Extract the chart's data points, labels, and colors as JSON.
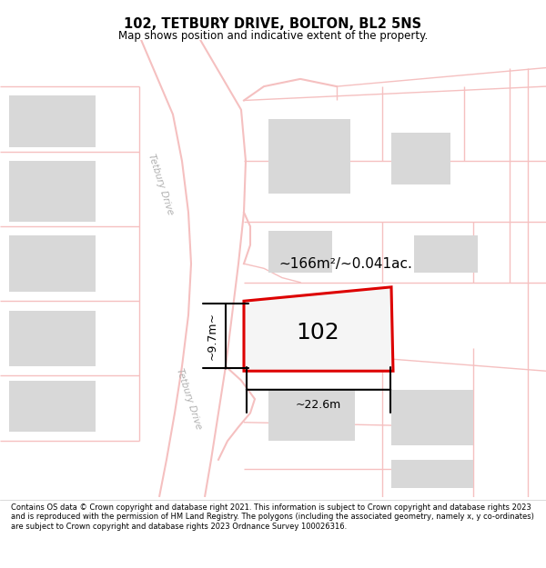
{
  "title": "102, TETBURY DRIVE, BOLTON, BL2 5NS",
  "subtitle": "Map shows position and indicative extent of the property.",
  "footer": "Contains OS data © Crown copyright and database right 2021. This information is subject to Crown copyright and database rights 2023 and is reproduced with the permission of HM Land Registry. The polygons (including the associated geometry, namely x, y co-ordinates) are subject to Crown copyright and database rights 2023 Ordnance Survey 100026316.",
  "bg_color": "#ffffff",
  "map_bg": "#ffffff",
  "property_label": "102",
  "area_label": "~166m²/~0.041ac.",
  "width_label": "~22.6m",
  "height_label": "~9.7m~",
  "road_label": "Tetbury Drive",
  "road_color": "#f5c0c0",
  "building_color": "#d8d8d8",
  "property_outline_color": "#dd0000",
  "property_fill": "#f0f0f0",
  "line_color": "#000000",
  "footer_bg": "#f0f0f0"
}
